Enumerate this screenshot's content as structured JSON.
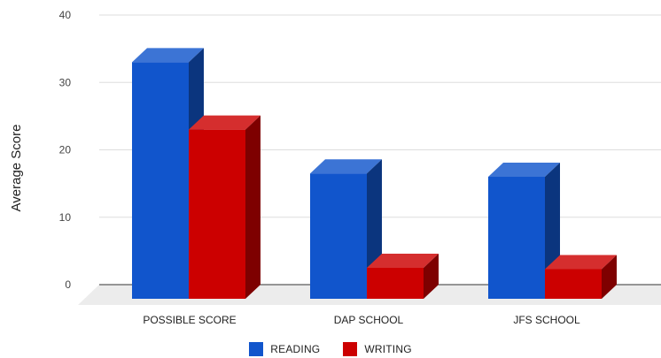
{
  "chart_data": {
    "type": "bar",
    "title": "",
    "xlabel": "",
    "ylabel": "Average Score",
    "ylim": [
      0,
      40
    ],
    "yticks": [
      0,
      10,
      20,
      30,
      40
    ],
    "grid": true,
    "legend_position": "bottom",
    "categories": [
      "POSSIBLE SCORE",
      "DAP SCHOOL",
      "JFS SCHOOL"
    ],
    "series": [
      {
        "name": "READING",
        "values": [
          33,
          16.5,
          16
        ],
        "color": "#1155cc"
      },
      {
        "name": "WRITING",
        "values": [
          23,
          2.5,
          2.3
        ],
        "color": "#cc0000"
      }
    ]
  }
}
